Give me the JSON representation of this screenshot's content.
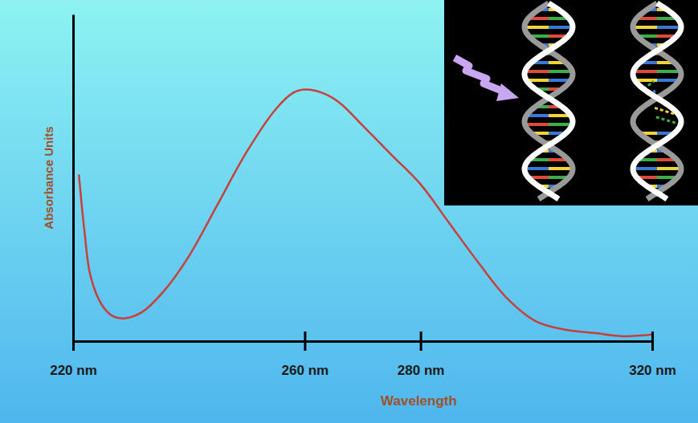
{
  "chart_data": {
    "type": "line",
    "x_label": "Wavelength",
    "y_label": "Absorbance Units",
    "x": [
      221,
      222,
      223,
      225,
      227,
      229,
      232,
      236,
      240,
      245,
      250,
      255,
      258,
      260,
      263,
      266,
      270,
      275,
      280,
      285,
      290,
      295,
      300,
      305,
      310,
      315,
      320
    ],
    "values": [
      0.51,
      0.33,
      0.2,
      0.11,
      0.075,
      0.07,
      0.09,
      0.16,
      0.26,
      0.42,
      0.58,
      0.71,
      0.76,
      0.77,
      0.76,
      0.73,
      0.66,
      0.57,
      0.48,
      0.36,
      0.24,
      0.13,
      0.06,
      0.035,
      0.025,
      0.015,
      0.02
    ],
    "color": "#c8403c",
    "xlim": [
      220,
      320
    ],
    "xticks": [
      {
        "value": 220,
        "label": "220 nm"
      },
      {
        "value": 260,
        "label": "260 nm"
      },
      {
        "value": 280,
        "label": "280 nm"
      },
      {
        "value": 320,
        "label": "320 nm"
      }
    ],
    "ylim": [
      0,
      1
    ],
    "tick_labels": "x",
    "grid": false
  }
}
